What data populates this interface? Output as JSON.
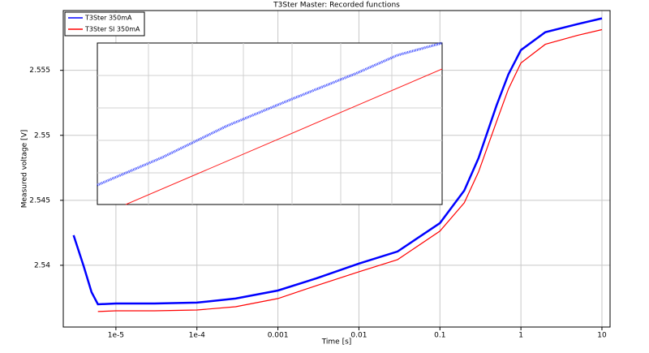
{
  "chart_data": {
    "type": "line",
    "title": "T3Ster Master: Recorded functions",
    "xlabel": "Time [s]",
    "ylabel": "Measured voltage [V]",
    "log_x": true,
    "grid": true,
    "legend": "upper left",
    "x": [
      3e-06,
      4e-06,
      5e-06,
      6e-06,
      1e-05,
      3e-05,
      0.0001,
      0.0003,
      0.001,
      0.003,
      0.01,
      0.03,
      0.1,
      0.2,
      0.3,
      0.5,
      0.7,
      1,
      2,
      5,
      10
    ],
    "series": [
      {
        "name": "T3Ster 350mA",
        "color": "#0000ff",
        "values": [
          2.54231,
          2.53994,
          2.53794,
          2.537,
          2.53706,
          2.53706,
          2.53713,
          2.53744,
          2.53806,
          2.539,
          2.54013,
          2.54106,
          2.54325,
          2.54575,
          2.54825,
          2.55231,
          2.55469,
          2.55656,
          2.55794,
          2.55856,
          2.559
        ]
      },
      {
        "name": "T3Ster SI 350mA",
        "color": "#ff0000",
        "values": [
          null,
          null,
          null,
          2.53644,
          2.5365,
          2.5365,
          2.53656,
          2.53681,
          2.53744,
          2.53844,
          2.5395,
          2.54044,
          2.54263,
          2.54481,
          2.54719,
          2.55106,
          2.55356,
          2.55556,
          2.557,
          2.55769,
          2.55813
        ]
      }
    ],
    "xlim": [
      2.24e-06,
      12.6
    ],
    "ylim": [
      2.53525,
      2.5596
    ],
    "xticks": [
      {
        "value": 1e-05,
        "label": "1e-5"
      },
      {
        "value": 0.0001,
        "label": "1e-4"
      },
      0.001,
      0.01,
      0.1,
      1,
      10
    ],
    "yticks": [
      2.54,
      2.545,
      2.55,
      2.555
    ]
  }
}
